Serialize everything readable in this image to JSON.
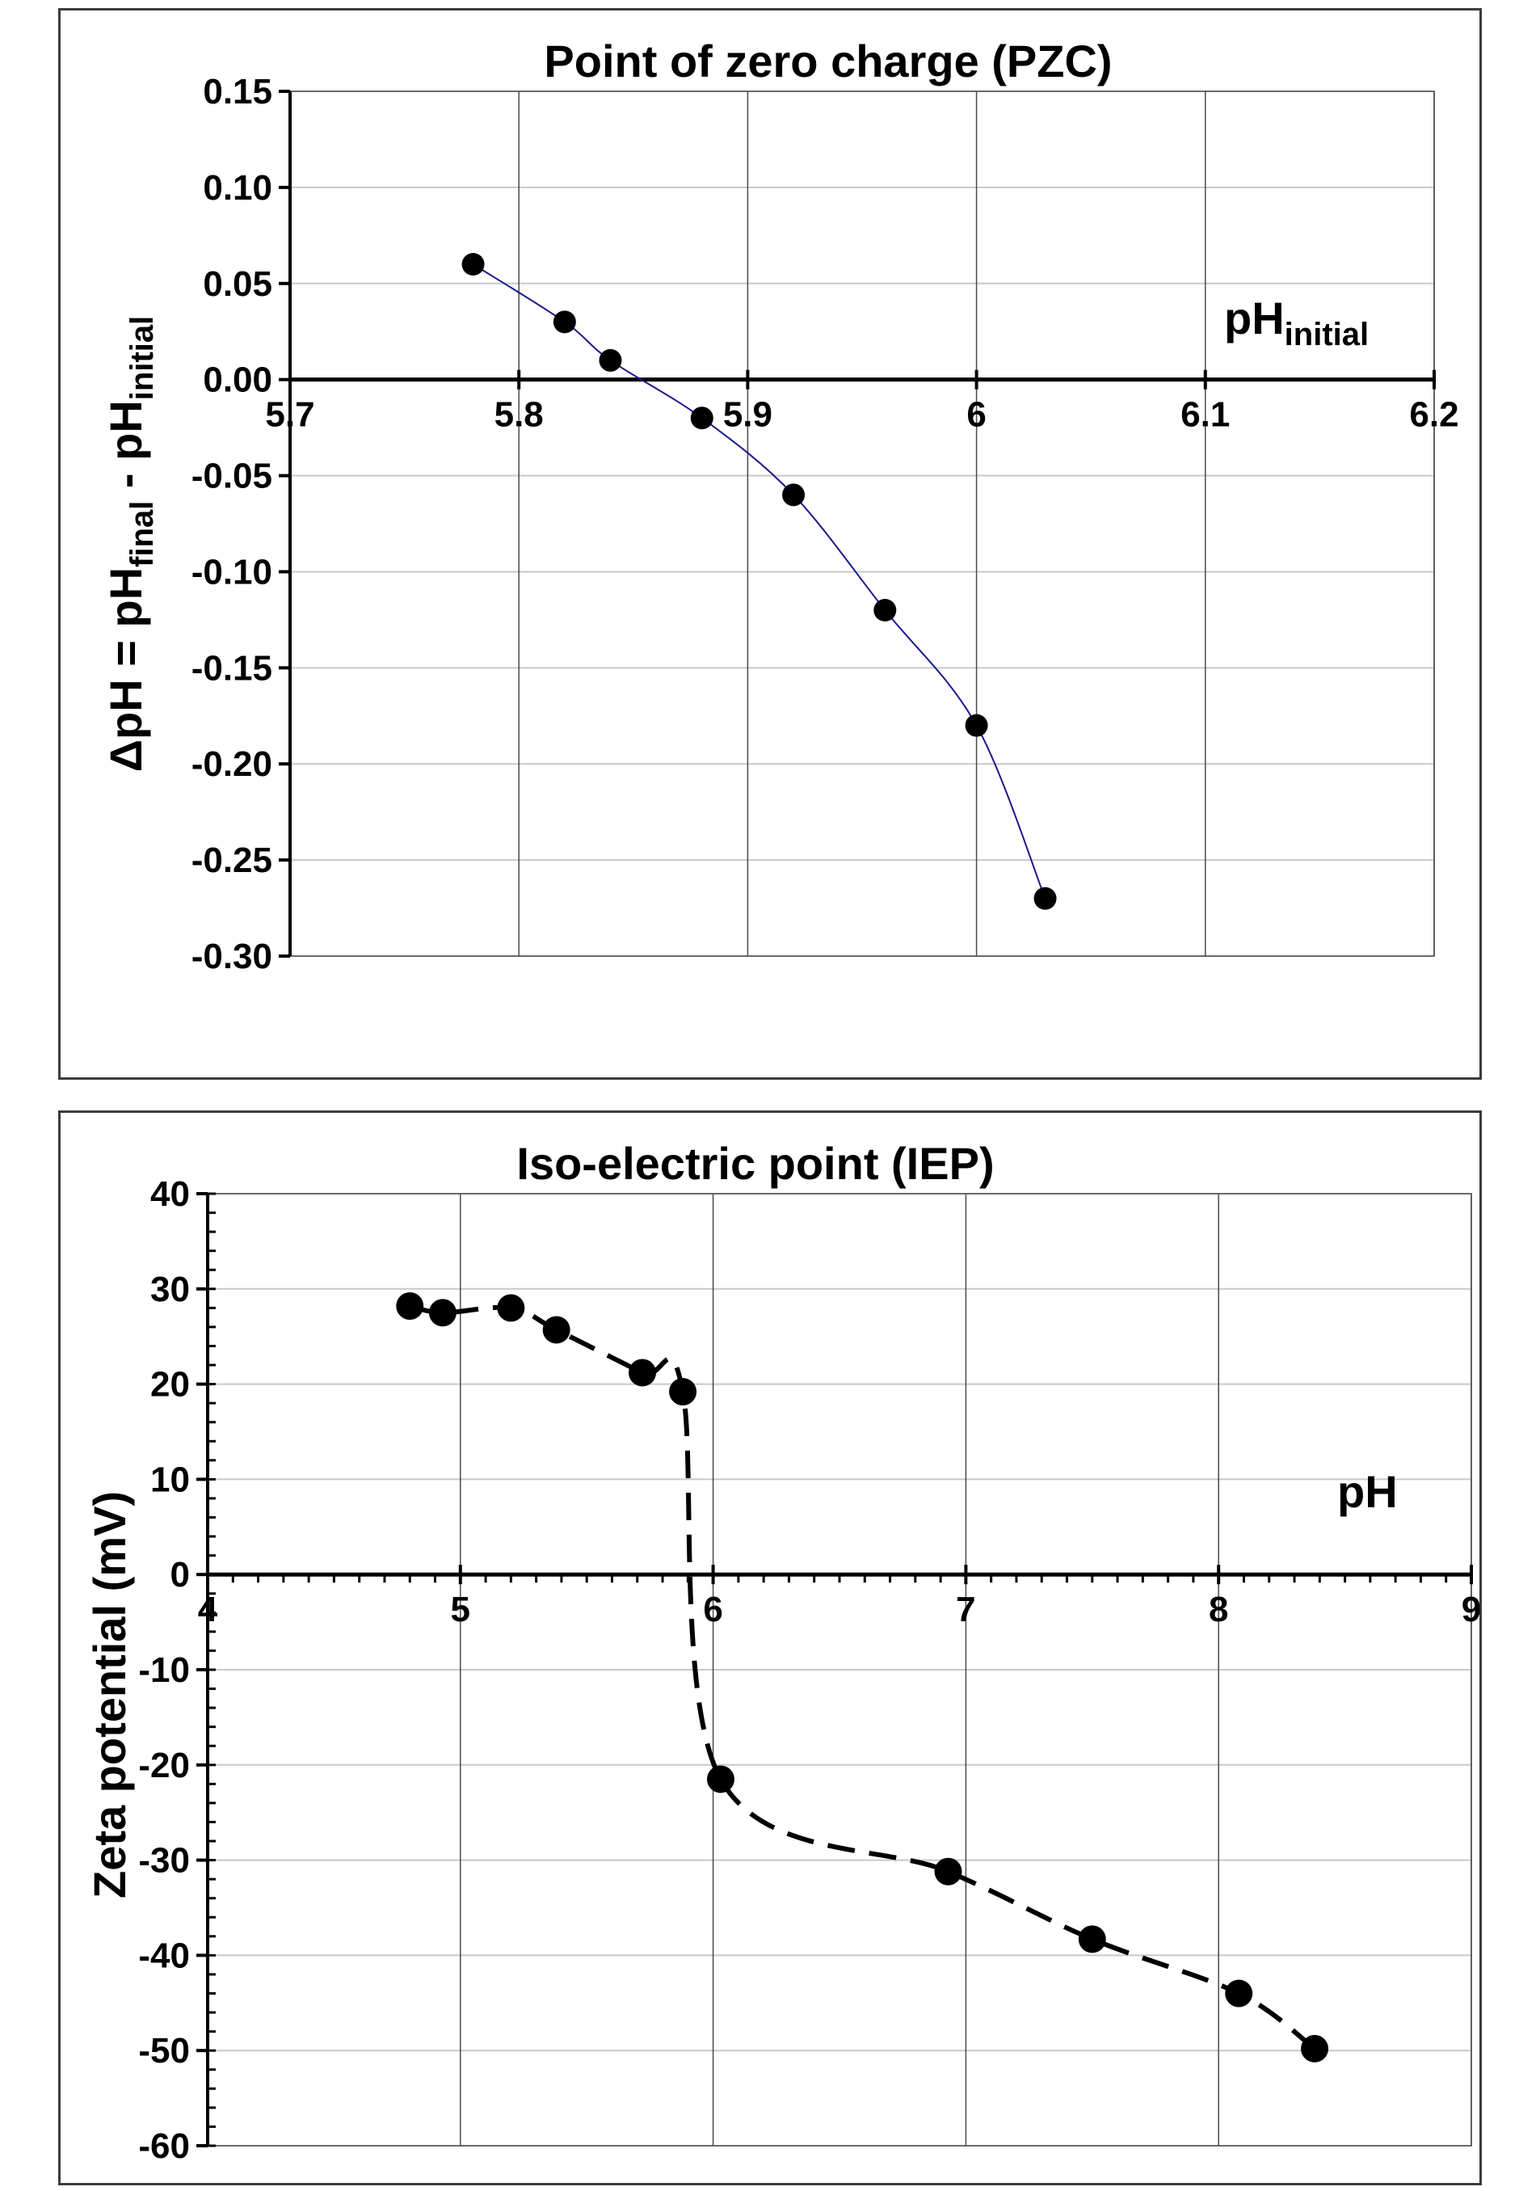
{
  "chart_data": [
    {
      "type": "line",
      "title": "Point of zero charge (PZC)",
      "ylabel": "ΔpH = pH_final - pH_initial",
      "ylabel_parts": [
        "ΔpH = pH",
        "final",
        " - pH",
        "initial"
      ],
      "xlabel": "pH_initial",
      "xlabel_parts": [
        "pH",
        "initial"
      ],
      "xlim": [
        5.7,
        6.2
      ],
      "ylim": [
        -0.3,
        0.15
      ],
      "x_ticks": [
        "5.7",
        "5.8",
        "5.9",
        "6",
        "6.1",
        "6.2"
      ],
      "y_ticks": [
        "0.15",
        "0.10",
        "0.05",
        "0.00",
        "-0.05",
        "-0.10",
        "-0.15",
        "-0.20",
        "-0.25",
        "-0.30"
      ],
      "grid": true,
      "line_style": "solid",
      "line_color": "#1a1a8c",
      "marker_color": "#000000",
      "series": [
        {
          "x": [
            5.78,
            5.82,
            5.84,
            5.88,
            5.92,
            5.96,
            6.0,
            6.03
          ],
          "y": [
            0.06,
            0.03,
            0.01,
            -0.02,
            -0.06,
            -0.12,
            -0.18,
            -0.27
          ]
        }
      ]
    },
    {
      "type": "line",
      "title": "Iso-electric point (IEP)",
      "ylabel": "Zeta potential (mV)",
      "xlabel": "pH",
      "xlim": [
        4,
        9
      ],
      "ylim": [
        -60,
        40
      ],
      "x_ticks": [
        "4",
        "5",
        "6",
        "7",
        "8",
        "9"
      ],
      "y_ticks": [
        "40",
        "30",
        "20",
        "10",
        "0",
        "-10",
        "-20",
        "-30",
        "-40",
        "-50",
        "-60"
      ],
      "grid": true,
      "line_style": "dashed",
      "line_color": "#000000",
      "marker_color": "#000000",
      "series": [
        {
          "x": [
            4.8,
            4.93,
            5.2,
            5.38,
            5.72,
            5.88,
            6.03,
            6.93,
            7.5,
            8.08,
            8.38
          ],
          "y": [
            28.2,
            27.5,
            28.0,
            25.7,
            21.2,
            19.2,
            -21.5,
            -31.2,
            -38.3,
            -44.0,
            -49.8
          ]
        }
      ]
    }
  ]
}
